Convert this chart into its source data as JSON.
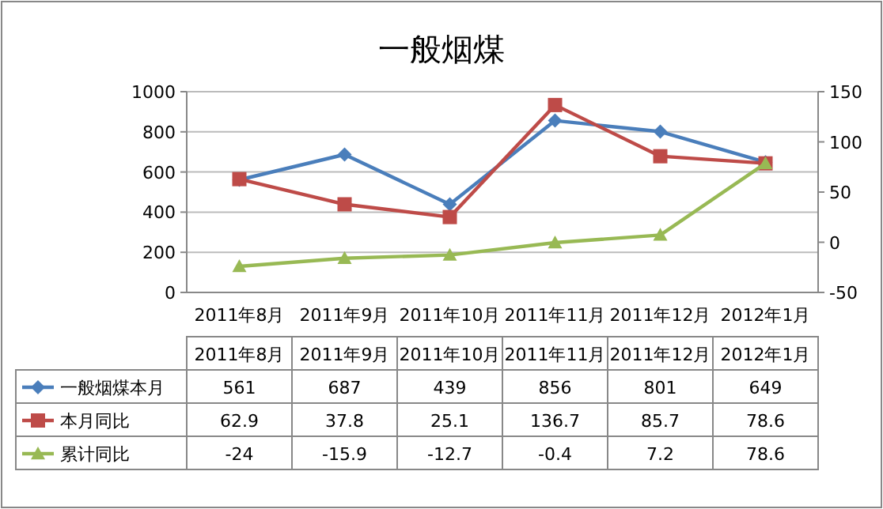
{
  "chart_data": {
    "type": "line",
    "title": "一般烟煤",
    "categories": [
      "2011年8月",
      "2011年9月",
      "2011年10月",
      "2011年11月",
      "2011年12月",
      "2012年1月"
    ],
    "series": [
      {
        "name": "一般烟煤本月",
        "color": "#4a7ebb",
        "values": [
          561,
          687,
          439,
          856,
          801,
          649
        ],
        "marker": "diamond"
      },
      {
        "name": "本月同比",
        "color": "#be4b48",
        "values": [
          62.9,
          37.8,
          25.1,
          136.7,
          85.7,
          78.6
        ],
        "axis": "y2",
        "marker": "square"
      },
      {
        "name": "累计同比",
        "color": "#98b954",
        "values": [
          -24,
          -15.9,
          -12.7,
          -0.4,
          7.2,
          78.6
        ],
        "axis": "y2",
        "marker": "triangle"
      }
    ],
    "ylim": [
      0,
      1000
    ],
    "yticks": [
      0,
      200,
      400,
      600,
      800,
      1000
    ],
    "y2lim": [
      -50,
      150
    ],
    "y2ticks": [
      -50,
      0,
      50,
      100,
      150
    ],
    "grid": "y",
    "legend": "bottom",
    "data_labels": true
  }
}
